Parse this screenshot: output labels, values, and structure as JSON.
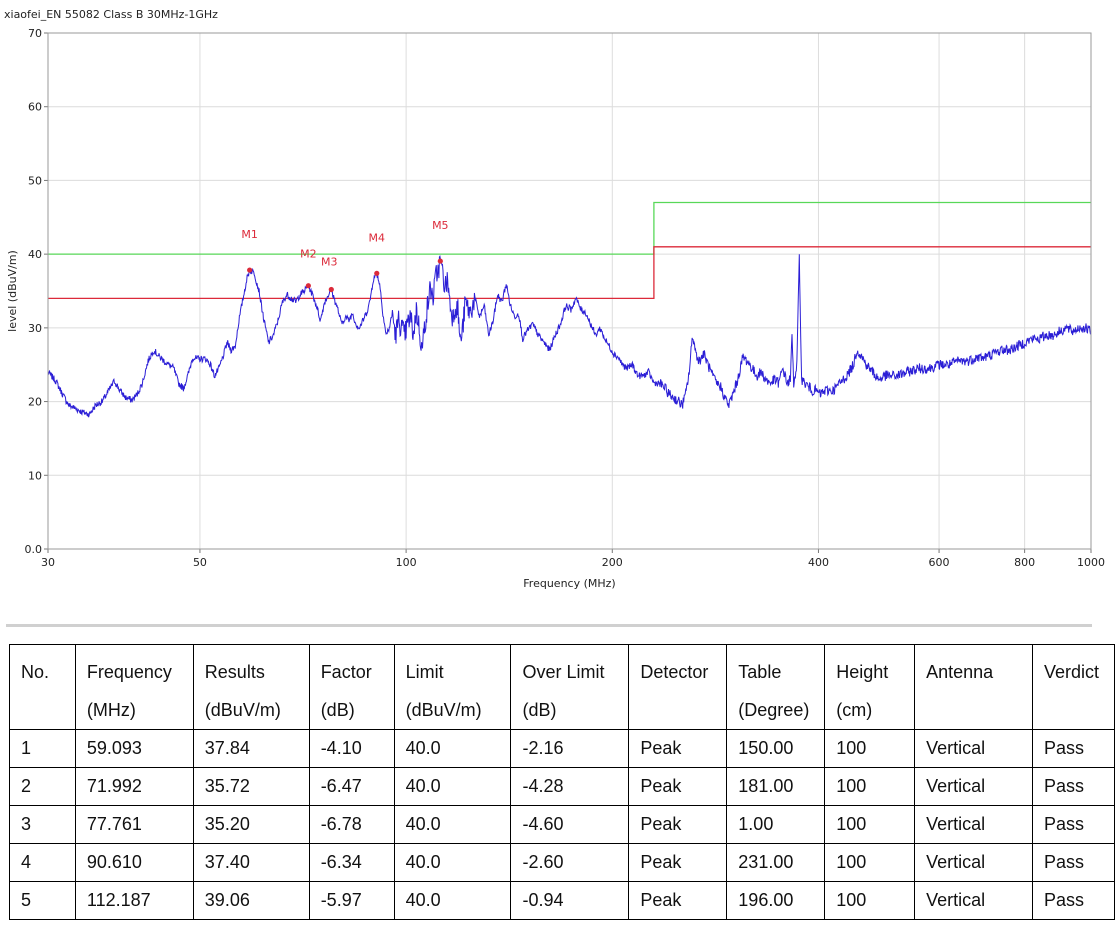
{
  "chart_data": {
    "type": "line",
    "title": "xiaofei_EN 55082 Class B 30MHz-1GHz",
    "xlabel": "Frequency (MHz)",
    "ylabel": "level (dBuV/m)",
    "xscale": "log",
    "xlim": [
      30,
      1000
    ],
    "ylim": [
      0,
      70
    ],
    "xticks": [
      30,
      50,
      100,
      200,
      400,
      600,
      800,
      1000
    ],
    "xtick_labels": [
      "30",
      "50",
      "100",
      "200",
      "400",
      "600",
      "800",
      "1000"
    ],
    "yticks": [
      0,
      10,
      20,
      30,
      40,
      50,
      60,
      70
    ],
    "ytick_labels": [
      "0.0",
      "10",
      "20",
      "30",
      "40",
      "50",
      "60",
      "70"
    ],
    "grid": true,
    "colors": {
      "trace": "#2b1ed6",
      "limit_green": "#58d858",
      "limit_red": "#dc2a3a",
      "marker": "#dc2a3a"
    },
    "limit_lines": [
      {
        "color": "green",
        "points": [
          [
            30,
            40
          ],
          [
            230,
            40
          ],
          [
            230,
            47
          ],
          [
            1000,
            47
          ]
        ]
      },
      {
        "color": "red",
        "points": [
          [
            30,
            34
          ],
          [
            230,
            34
          ],
          [
            230,
            41
          ],
          [
            1000,
            41
          ]
        ]
      }
    ],
    "trace": [
      [
        30,
        24
      ],
      [
        30.8,
        22.8
      ],
      [
        31.5,
        21
      ],
      [
        32.2,
        19.5
      ],
      [
        33,
        19
      ],
      [
        33.8,
        18.5
      ],
      [
        34.5,
        18.3
      ],
      [
        35.2,
        19.5
      ],
      [
        36,
        20
      ],
      [
        36.8,
        21.5
      ],
      [
        37.5,
        22.8
      ],
      [
        38.2,
        21.5
      ],
      [
        39,
        20.5
      ],
      [
        39.8,
        20.2
      ],
      [
        40.5,
        21
      ],
      [
        41.2,
        22.5
      ],
      [
        42,
        25.5
      ],
      [
        42.8,
        27
      ],
      [
        43.5,
        26.2
      ],
      [
        44.3,
        25.5
      ],
      [
        45,
        25
      ],
      [
        45.8,
        24.5
      ],
      [
        46.5,
        22.5
      ],
      [
        47.3,
        21.8
      ],
      [
        48,
        23.5
      ],
      [
        48.8,
        26
      ],
      [
        49.5,
        25.8
      ],
      [
        50.3,
        25.8
      ],
      [
        51,
        25.8
      ],
      [
        51.8,
        25
      ],
      [
        52.5,
        23.5
      ],
      [
        53.3,
        24.5
      ],
      [
        54,
        26
      ],
      [
        54.8,
        28
      ],
      [
        55.5,
        27
      ],
      [
        56.3,
        27.5
      ],
      [
        57,
        31
      ],
      [
        57.8,
        34
      ],
      [
        58.5,
        36.5
      ],
      [
        59.093,
        37.84
      ],
      [
        60,
        37.5
      ],
      [
        61,
        35
      ],
      [
        62,
        31
      ],
      [
        63,
        28
      ],
      [
        64,
        29
      ],
      [
        65,
        31
      ],
      [
        66,
        33.5
      ],
      [
        67,
        34.5
      ],
      [
        68,
        34
      ],
      [
        69,
        33.5
      ],
      [
        70,
        34.5
      ],
      [
        71,
        35
      ],
      [
        71.992,
        35.72
      ],
      [
        73,
        34.5
      ],
      [
        74,
        33
      ],
      [
        75,
        31
      ],
      [
        76,
        33.5
      ],
      [
        77,
        34.5
      ],
      [
        77.761,
        35.2
      ],
      [
        78.5,
        34
      ],
      [
        79.5,
        32.5
      ],
      [
        80.5,
        30.5
      ],
      [
        81.5,
        31.5
      ],
      [
        82.5,
        31
      ],
      [
        83.5,
        32
      ],
      [
        84.5,
        30.5
      ],
      [
        85.5,
        30
      ],
      [
        86.5,
        31
      ],
      [
        87.5,
        32
      ],
      [
        88.5,
        33.5
      ],
      [
        89.5,
        36.5
      ],
      [
        90.61,
        37.4
      ],
      [
        91.5,
        36
      ],
      [
        92.5,
        32
      ],
      [
        93.5,
        29
      ],
      [
        94.5,
        30
      ],
      [
        95.5,
        32
      ],
      [
        96.5,
        29
      ],
      [
        97.5,
        31
      ],
      [
        98.5,
        30
      ],
      [
        99.5,
        29
      ],
      [
        100.5,
        30.5
      ],
      [
        101.5,
        31.5
      ],
      [
        102.5,
        29
      ],
      [
        103.5,
        32.5
      ],
      [
        104.5,
        30
      ],
      [
        105.5,
        27
      ],
      [
        106.5,
        30.5
      ],
      [
        107.5,
        33
      ],
      [
        108.5,
        35.5
      ],
      [
        109.5,
        34
      ],
      [
        110.5,
        37
      ],
      [
        111.5,
        38
      ],
      [
        112.187,
        39.06
      ],
      [
        113,
        37.5
      ],
      [
        114,
        35.5
      ],
      [
        115,
        36.5
      ],
      [
        116,
        33
      ],
      [
        117,
        31.5
      ],
      [
        118,
        33
      ],
      [
        119,
        32.5
      ],
      [
        120,
        28
      ],
      [
        121,
        30
      ],
      [
        122,
        33.5
      ],
      [
        124,
        32
      ],
      [
        126,
        34
      ],
      [
        128,
        31.5
      ],
      [
        130,
        33
      ],
      [
        132,
        29
      ],
      [
        134,
        31
      ],
      [
        136,
        34.5
      ],
      [
        138,
        33.5
      ],
      [
        140,
        36
      ],
      [
        142,
        33
      ],
      [
        144,
        31.5
      ],
      [
        146,
        32
      ],
      [
        148,
        28.5
      ],
      [
        150,
        29.5
      ],
      [
        153,
        30.5
      ],
      [
        156,
        29
      ],
      [
        159,
        28
      ],
      [
        162,
        27
      ],
      [
        165,
        29
      ],
      [
        168,
        30.5
      ],
      [
        171,
        33
      ],
      [
        174,
        32.5
      ],
      [
        177,
        34
      ],
      [
        180,
        32.5
      ],
      [
        183,
        32
      ],
      [
        186,
        30.5
      ],
      [
        189,
        29
      ],
      [
        192,
        30
      ],
      [
        195,
        28.5
      ],
      [
        198,
        27.5
      ],
      [
        201,
        26.5
      ],
      [
        204,
        26
      ],
      [
        207,
        25
      ],
      [
        210,
        24.5
      ],
      [
        214,
        25
      ],
      [
        218,
        23.5
      ],
      [
        222,
        23.5
      ],
      [
        226,
        24
      ],
      [
        230,
        22.5
      ],
      [
        234,
        22.5
      ],
      [
        238,
        22
      ],
      [
        242,
        21
      ],
      [
        246,
        20.5
      ],
      [
        250,
        20
      ],
      [
        253,
        19.5
      ],
      [
        256,
        21
      ],
      [
        259,
        24
      ],
      [
        262,
        29
      ],
      [
        265,
        26.5
      ],
      [
        268,
        25.5
      ],
      [
        272,
        26.5
      ],
      [
        276,
        25
      ],
      [
        280,
        23.5
      ],
      [
        284,
        22.5
      ],
      [
        288,
        22
      ],
      [
        292,
        20.5
      ],
      [
        296,
        19.5
      ],
      [
        300,
        21
      ],
      [
        305,
        23
      ],
      [
        310,
        26
      ],
      [
        315,
        25.5
      ],
      [
        320,
        24.5
      ],
      [
        325,
        23.5
      ],
      [
        330,
        24
      ],
      [
        335,
        23
      ],
      [
        340,
        22.5
      ],
      [
        345,
        23
      ],
      [
        350,
        22.5
      ],
      [
        355,
        24.5
      ],
      [
        360,
        22.5
      ],
      [
        364,
        23
      ],
      [
        366,
        29
      ],
      [
        368,
        22.5
      ],
      [
        372,
        25
      ],
      [
        375,
        39.3
      ],
      [
        378,
        23
      ],
      [
        382,
        22.5
      ],
      [
        387,
        22
      ],
      [
        392,
        21.5
      ],
      [
        397,
        21.5
      ],
      [
        402,
        21
      ],
      [
        410,
        21.5
      ],
      [
        420,
        21.5
      ],
      [
        430,
        22.5
      ],
      [
        440,
        23.5
      ],
      [
        450,
        25
      ],
      [
        455,
        27
      ],
      [
        460,
        26.5
      ],
      [
        470,
        25
      ],
      [
        480,
        24
      ],
      [
        490,
        23
      ],
      [
        500,
        23.5
      ],
      [
        520,
        23.5
      ],
      [
        540,
        24
      ],
      [
        560,
        24.5
      ],
      [
        580,
        24.5
      ],
      [
        600,
        25
      ],
      [
        620,
        25
      ],
      [
        640,
        25.5
      ],
      [
        660,
        25.5
      ],
      [
        680,
        26
      ],
      [
        700,
        26
      ],
      [
        720,
        26.5
      ],
      [
        740,
        27
      ],
      [
        760,
        27
      ],
      [
        780,
        27.5
      ],
      [
        800,
        28
      ],
      [
        820,
        28.5
      ],
      [
        840,
        28.5
      ],
      [
        860,
        29
      ],
      [
        880,
        29
      ],
      [
        900,
        29.5
      ],
      [
        920,
        30
      ],
      [
        940,
        29.5
      ],
      [
        960,
        30
      ],
      [
        980,
        30
      ],
      [
        1000,
        29.5
      ]
    ],
    "markers": [
      {
        "label": "M1",
        "x": 59.093,
        "y": 37.84
      },
      {
        "label": "M2",
        "x": 71.992,
        "y": 35.72
      },
      {
        "label": "M3",
        "x": 77.761,
        "y": 35.2
      },
      {
        "label": "M4",
        "x": 90.61,
        "y": 37.4
      },
      {
        "label": "M5",
        "x": 112.187,
        "y": 39.06
      }
    ]
  },
  "table": {
    "headers": [
      [
        "No."
      ],
      [
        "Frequency",
        "(MHz)"
      ],
      [
        "Results",
        "(dBuV/m)"
      ],
      [
        "Factor",
        "(dB)"
      ],
      [
        "Limit",
        "(dBuV/m)"
      ],
      [
        "Over Limit",
        "(dB)"
      ],
      [
        "Detector"
      ],
      [
        "Table",
        "(Degree)"
      ],
      [
        "Height",
        "(cm)"
      ],
      [
        "Antenna"
      ],
      [
        "Verdict"
      ]
    ],
    "rows": [
      [
        "1",
        "59.093",
        "37.84",
        "-4.10",
        "40.0",
        "-2.16",
        "Peak",
        "150.00",
        "100",
        "Vertical",
        "Pass"
      ],
      [
        "2",
        "71.992",
        "35.72",
        "-6.47",
        "40.0",
        "-4.28",
        "Peak",
        "181.00",
        "100",
        "Vertical",
        "Pass"
      ],
      [
        "3",
        "77.761",
        "35.20",
        "-6.78",
        "40.0",
        "-4.60",
        "Peak",
        "1.00",
        "100",
        "Vertical",
        "Pass"
      ],
      [
        "4",
        "90.610",
        "37.40",
        "-6.34",
        "40.0",
        "-2.60",
        "Peak",
        "231.00",
        "100",
        "Vertical",
        "Pass"
      ],
      [
        "5",
        "112.187",
        "39.06",
        "-5.97",
        "40.0",
        "-0.94",
        "Peak",
        "196.00",
        "100",
        "Vertical",
        "Pass"
      ]
    ]
  }
}
